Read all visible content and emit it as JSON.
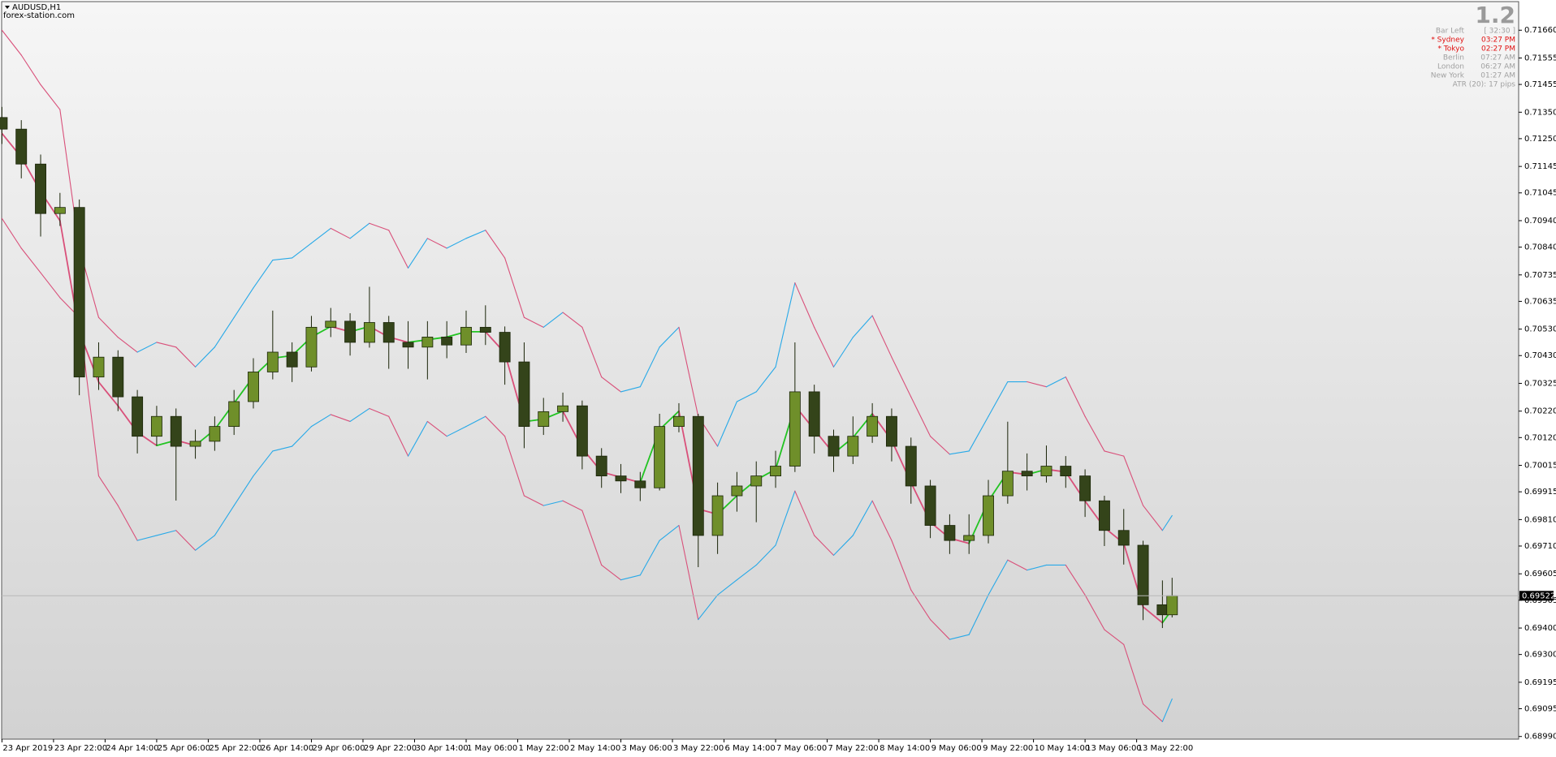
{
  "header": {
    "symbol": "AUDUSD,H1",
    "site": "forex-station.com"
  },
  "info_panel": {
    "version": "1.2",
    "rows": [
      {
        "label": "Bar Left",
        "value": "[ 32:30 ]",
        "color": "#a0a0a0"
      },
      {
        "label": "* Sydney",
        "value": "03:27 PM",
        "color": "#e01010"
      },
      {
        "label": "* Tokyo",
        "value": "02:27 PM",
        "color": "#e01010"
      },
      {
        "label": "Berlin",
        "value": "07:27 AM",
        "color": "#a0a0a0"
      },
      {
        "label": "London",
        "value": "06:27 AM",
        "color": "#a0a0a0"
      },
      {
        "label": "New York",
        "value": "01:27 AM",
        "color": "#a0a0a0"
      }
    ],
    "atr": "ATR (20): 17 pips"
  },
  "chart_data": {
    "type": "candlestick",
    "x": [
      0,
      6,
      12,
      18,
      24,
      30,
      36,
      42,
      48,
      54,
      60,
      66,
      72,
      78,
      84,
      90,
      96,
      102,
      108,
      114,
      120,
      126,
      132,
      138,
      144,
      150,
      156,
      162,
      168,
      174,
      180,
      186,
      192,
      198,
      204,
      210,
      216,
      222,
      228,
      234,
      240,
      246,
      252,
      258,
      264,
      270,
      276,
      282,
      288,
      294,
      300,
      306,
      312,
      318,
      324,
      330,
      336,
      342,
      348,
      354,
      360,
      363
    ],
    "open": [
      0.7133,
      0.71286,
      0.71154,
      0.70967,
      0.7099,
      0.70349,
      0.70424,
      0.70274,
      0.70125,
      0.702,
      0.70087,
      0.70106,
      0.70162,
      0.70256,
      0.70368,
      0.70443,
      0.70387,
      0.70537,
      0.7056,
      0.7048,
      0.70555,
      0.7048,
      0.70462,
      0.705,
      0.7047,
      0.70537,
      0.70518,
      0.70406,
      0.70162,
      0.70218,
      0.7024,
      0.7005,
      0.69975,
      0.69956,
      0.6993,
      0.70162,
      0.702,
      0.6975,
      0.699,
      0.69937,
      0.69975,
      0.70012,
      0.70293,
      0.70125,
      0.7005,
      0.70125,
      0.702,
      0.70087,
      0.69937,
      0.69788,
      0.69731,
      0.6975,
      0.699,
      0.69993,
      0.69975,
      0.70012,
      0.69975,
      0.69881,
      0.69769,
      0.69713,
      0.69488,
      0.6945
    ],
    "high": [
      0.7137,
      0.7132,
      0.7119,
      0.71045,
      0.7102,
      0.7048,
      0.7045,
      0.703,
      0.7024,
      0.7023,
      0.7015,
      0.702,
      0.703,
      0.7042,
      0.706,
      0.7048,
      0.7058,
      0.7061,
      0.7059,
      0.7069,
      0.7058,
      0.7056,
      0.7056,
      0.7056,
      0.706,
      0.7062,
      0.7054,
      0.7048,
      0.7027,
      0.7029,
      0.7026,
      0.7008,
      0.7002,
      0.6999,
      0.7021,
      0.7025,
      0.7021,
      0.6995,
      0.6999,
      0.7003,
      0.7007,
      0.7048,
      0.7032,
      0.7015,
      0.702,
      0.7025,
      0.7023,
      0.7012,
      0.6996,
      0.6983,
      0.6983,
      0.6996,
      0.7018,
      0.7006,
      0.7009,
      0.7005,
      0.7,
      0.699,
      0.6985,
      0.6973,
      0.6958,
      0.6959
    ],
    "low": [
      0.7123,
      0.711,
      0.7088,
      0.7092,
      0.7028,
      0.703,
      0.7022,
      0.7006,
      0.7009,
      0.69882,
      0.7004,
      0.7007,
      0.7013,
      0.7023,
      0.7034,
      0.7033,
      0.7037,
      0.705,
      0.7043,
      0.7046,
      0.7038,
      0.7038,
      0.7034,
      0.7042,
      0.7044,
      0.7047,
      0.7032,
      0.7008,
      0.7013,
      0.7018,
      0.7,
      0.6993,
      0.6991,
      0.6988,
      0.6992,
      0.7014,
      0.6963,
      0.6968,
      0.6984,
      0.698,
      0.6993,
      0.6999,
      0.7006,
      0.6999,
      0.7002,
      0.701,
      0.7003,
      0.6987,
      0.6974,
      0.6968,
      0.6968,
      0.6972,
      0.6987,
      0.6992,
      0.6995,
      0.6993,
      0.6982,
      0.6971,
      0.6964,
      0.6943,
      0.694,
      0.6944
    ],
    "close": [
      0.71286,
      0.71154,
      0.70967,
      0.7099,
      0.70349,
      0.70424,
      0.70274,
      0.70125,
      0.702,
      0.70087,
      0.70106,
      0.70162,
      0.70256,
      0.70368,
      0.70443,
      0.70387,
      0.70537,
      0.7056,
      0.7048,
      0.70555,
      0.7048,
      0.70462,
      0.705,
      0.7047,
      0.70537,
      0.70518,
      0.70406,
      0.70162,
      0.70218,
      0.7024,
      0.7005,
      0.69975,
      0.69956,
      0.6993,
      0.70162,
      0.702,
      0.6975,
      0.699,
      0.69937,
      0.69975,
      0.70012,
      0.70293,
      0.70125,
      0.7005,
      0.70125,
      0.702,
      0.70087,
      0.69937,
      0.69788,
      0.69731,
      0.6975,
      0.699,
      0.69993,
      0.69975,
      0.70012,
      0.69975,
      0.69881,
      0.69769,
      0.69713,
      0.69488,
      0.6945,
      0.69522
    ],
    "bull_color": "#6f8f2a",
    "bear_color": "#34441a",
    "wick_color": "#1a2408",
    "overlays": [
      {
        "up_color": "#27a9e8",
        "down_color": "#d9507a",
        "values": [
          0.7166,
          0.71566,
          0.71454,
          0.7136,
          0.70836,
          0.70574,
          0.70499,
          0.70443,
          0.7048,
          0.70462,
          0.70387,
          0.70462,
          0.70574,
          0.70686,
          0.70791,
          0.70799,
          0.70855,
          0.70911,
          0.70873,
          0.7093,
          0.70904,
          0.70761,
          0.70873,
          0.70836,
          0.70873,
          0.70904,
          0.70799,
          0.70574,
          0.70537,
          0.70593,
          0.70537,
          0.70349,
          0.70293,
          0.70312,
          0.70462,
          0.70537,
          0.702,
          0.70087,
          0.70256,
          0.70293,
          0.70387,
          0.70705,
          0.70537,
          0.70387,
          0.70499,
          0.70581,
          0.70424,
          0.70274,
          0.70125,
          0.70057,
          0.70069,
          0.702,
          0.70331,
          0.70331,
          0.70312,
          0.70349,
          0.702,
          0.70069,
          0.7005,
          0.69863,
          0.69769,
          0.69825
        ]
      },
      {
        "up_color": "#22c422",
        "down_color": "#d9507a",
        "values": [
          0.7127,
          0.7118,
          0.7105,
          0.7094,
          0.7052,
          0.7033,
          0.7024,
          0.7014,
          0.7009,
          0.7011,
          0.7009,
          0.7015,
          0.7025,
          0.7035,
          0.7042,
          0.7043,
          0.705,
          0.7054,
          0.7052,
          0.7054,
          0.705,
          0.7048,
          0.7049,
          0.705,
          0.7052,
          0.7052,
          0.7044,
          0.7018,
          0.7019,
          0.7022,
          0.7008,
          0.6999,
          0.6997,
          0.6995,
          0.7015,
          0.7022,
          0.6985,
          0.6983,
          0.699,
          0.6996,
          0.7,
          0.7024,
          0.7015,
          0.7006,
          0.7012,
          0.7021,
          0.7011,
          0.6995,
          0.698,
          0.6974,
          0.6972,
          0.6988,
          0.6999,
          0.6998,
          0.7,
          0.6999,
          0.6988,
          0.6978,
          0.6972,
          0.6948,
          0.6942,
          0.6947
        ]
      },
      {
        "up_color": "#27a9e8",
        "down_color": "#d9507a",
        "values": [
          0.70948,
          0.70836,
          0.70743,
          0.70649,
          0.70574,
          0.69975,
          0.69863,
          0.69731,
          0.6975,
          0.69769,
          0.69694,
          0.6975,
          0.69863,
          0.69975,
          0.70069,
          0.70087,
          0.70162,
          0.70207,
          0.70181,
          0.7023,
          0.702,
          0.7005,
          0.70181,
          0.70125,
          0.70162,
          0.702,
          0.70125,
          0.699,
          0.69863,
          0.69881,
          0.69844,
          0.69638,
          0.69582,
          0.696,
          0.69731,
          0.69788,
          0.69432,
          0.69525,
          0.69582,
          0.69638,
          0.69713,
          0.69918,
          0.6975,
          0.69675,
          0.6975,
          0.69881,
          0.69731,
          0.69544,
          0.69432,
          0.69357,
          0.69375,
          0.69525,
          0.69657,
          0.69619,
          0.69638,
          0.69638,
          0.69525,
          0.69394,
          0.69338,
          0.69113,
          0.69046,
          0.69132
        ]
      }
    ],
    "current_price": 0.69522,
    "xlim": [
      0,
      470
    ],
    "xticks": [
      {
        "value": 0,
        "label": "23 Apr 2019"
      },
      {
        "value": 16,
        "label": "23 Apr 22:00"
      },
      {
        "value": 32,
        "label": "24 Apr 14:00"
      },
      {
        "value": 48,
        "label": "25 Apr 06:00"
      },
      {
        "value": 64,
        "label": "25 Apr 22:00"
      },
      {
        "value": 80,
        "label": "26 Apr 14:00"
      },
      {
        "value": 96,
        "label": "29 Apr 06:00"
      },
      {
        "value": 112,
        "label": "29 Apr 22:00"
      },
      {
        "value": 128,
        "label": "30 Apr 14:00"
      },
      {
        "value": 144,
        "label": "1 May 06:00"
      },
      {
        "value": 160,
        "label": "1 May 22:00"
      },
      {
        "value": 176,
        "label": "2 May 14:00"
      },
      {
        "value": 192,
        "label": "3 May 06:00"
      },
      {
        "value": 208,
        "label": "3 May 22:00"
      },
      {
        "value": 224,
        "label": "6 May 14:00"
      },
      {
        "value": 240,
        "label": "7 May 06:00"
      },
      {
        "value": 256,
        "label": "7 May 22:00"
      },
      {
        "value": 272,
        "label": "8 May 14:00"
      },
      {
        "value": 288,
        "label": "9 May 06:00"
      },
      {
        "value": 304,
        "label": "9 May 22:00"
      },
      {
        "value": 320,
        "label": "10 May 14:00"
      },
      {
        "value": 336,
        "label": "13 May 06:00"
      },
      {
        "value": 352,
        "label": "13 May 22:00"
      }
    ],
    "ylim": [
      0.68983,
      0.71765
    ],
    "yticks": [
      {
        "value": 0.7166,
        "label": "0.71660"
      },
      0.71555,
      0.71455,
      {
        "value": 0.7135,
        "label": "0.71350"
      },
      {
        "value": 0.7125,
        "label": "0.71250"
      },
      0.71145,
      0.71045,
      {
        "value": 0.7094,
        "label": "0.70940"
      },
      {
        "value": 0.7084,
        "label": "0.70840"
      },
      0.70735,
      0.70635,
      {
        "value": 0.7053,
        "label": "0.70530"
      },
      {
        "value": 0.7043,
        "label": "0.70430"
      },
      0.70325,
      {
        "value": 0.7022,
        "label": "0.70220"
      },
      {
        "value": 0.7012,
        "label": "0.70120"
      },
      0.70015,
      0.69915,
      {
        "value": 0.6981,
        "label": "0.69810"
      },
      {
        "value": 0.6971,
        "label": "0.69710"
      },
      0.69605,
      0.69505,
      {
        "value": 0.694,
        "label": "0.69400"
      },
      {
        "value": 0.693,
        "label": "0.69300"
      },
      0.69195,
      0.69095,
      {
        "value": 0.6899,
        "label": "0.68990"
      }
    ],
    "grid": false
  }
}
